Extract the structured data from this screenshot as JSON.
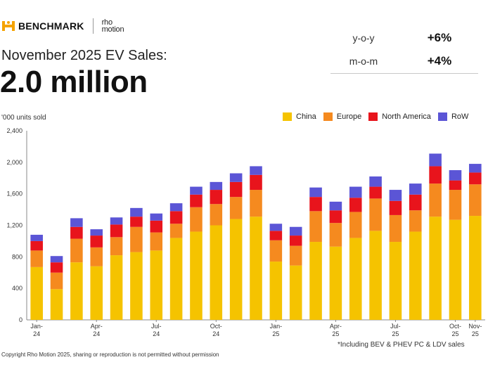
{
  "header": {
    "brand": "BENCHMARK",
    "partner_line1": "rho",
    "partner_line2": "motion",
    "subtitle": "November 2025 EV Sales:",
    "headline": "2.0 million"
  },
  "stats": [
    {
      "label": "y-o-y",
      "value": "+6%"
    },
    {
      "label": "m-o-m",
      "value": "+4%"
    }
  ],
  "units_label": "'000 units sold",
  "footnote": "*Including BEV & PHEV PC & LDV sales",
  "copyright": "Copyright Rho Motion 2025, sharing or reproduction is not permitted without permission",
  "colors": {
    "China": "#f5c300",
    "Europe": "#f58a1f",
    "North America": "#e8141c",
    "RoW": "#5b55d6"
  },
  "chart_data": {
    "type": "bar",
    "stacked": true,
    "categories": [
      "Jan-24",
      "Feb-24",
      "Mar-24",
      "Apr-24",
      "May-24",
      "Jun-24",
      "Jul-24",
      "Aug-24",
      "Sep-24",
      "Oct-24",
      "Nov-24",
      "Dec-24",
      "Jan-25",
      "Feb-25",
      "Mar-25",
      "Apr-25",
      "May-25",
      "Jun-25",
      "Jul-25",
      "Aug-25",
      "Sep-25",
      "Oct-25",
      "Nov-25"
    ],
    "x_tick_labels": [
      {
        "index": 0,
        "line1": "Jan-",
        "line2": "24"
      },
      {
        "index": 3,
        "line1": "Apr-",
        "line2": "24"
      },
      {
        "index": 6,
        "line1": "Jul-",
        "line2": "24"
      },
      {
        "index": 9,
        "line1": "Oct-",
        "line2": "24"
      },
      {
        "index": 12,
        "line1": "Jan-",
        "line2": "25"
      },
      {
        "index": 15,
        "line1": "Apr-",
        "line2": "25"
      },
      {
        "index": 18,
        "line1": "Jul-",
        "line2": "25"
      },
      {
        "index": 21,
        "line1": "Oct-",
        "line2": "25"
      },
      {
        "index": 22,
        "line1": "Nov-",
        "line2": "25"
      }
    ],
    "series": [
      {
        "name": "China",
        "values": [
          670,
          390,
          730,
          680,
          820,
          860,
          880,
          1040,
          1120,
          1200,
          1280,
          1310,
          740,
          690,
          990,
          930,
          1040,
          1130,
          990,
          1120,
          1310,
          1270,
          1320
        ]
      },
      {
        "name": "Europe",
        "values": [
          210,
          210,
          300,
          240,
          230,
          320,
          230,
          180,
          310,
          270,
          280,
          340,
          270,
          250,
          390,
          300,
          330,
          410,
          340,
          270,
          420,
          380,
          400
        ]
      },
      {
        "name": "North America",
        "values": [
          120,
          130,
          150,
          150,
          160,
          130,
          150,
          160,
          160,
          180,
          190,
          190,
          120,
          130,
          180,
          160,
          180,
          150,
          180,
          200,
          220,
          120,
          150
        ]
      },
      {
        "name": "RoW",
        "values": [
          80,
          80,
          110,
          80,
          90,
          110,
          90,
          100,
          100,
          100,
          110,
          110,
          90,
          110,
          120,
          110,
          140,
          130,
          140,
          140,
          160,
          130,
          110
        ]
      }
    ],
    "y_ticks": [
      "0",
      "400",
      "800",
      "1,200",
      "1,600",
      "2,000",
      "2,400"
    ],
    "ylim": [
      0,
      2400
    ],
    "legend_position": "top-right"
  }
}
